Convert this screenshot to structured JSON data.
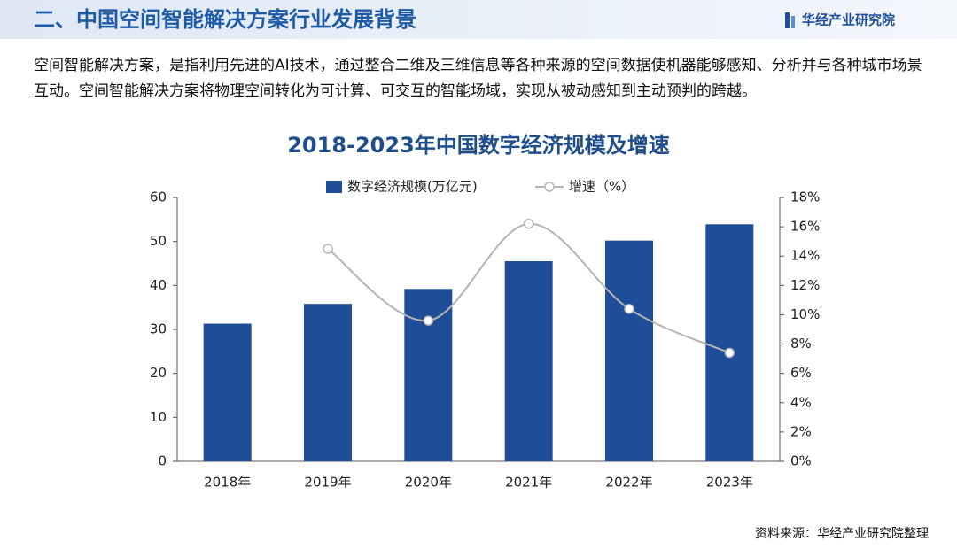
{
  "header": {
    "title": "二、中国空间智能解决方案行业发展背景",
    "logo": "华经产业研究院"
  },
  "paragraph": "空间智能解决方案，是指利用先进的AI技术，通过整合二维及三维信息等各种来源的空间数据使机器能够感知、分析并与各种城市场景互动。空间智能解决方案将物理空间转化为可计算、可交互的智能场域，实现从被动感知到主动预判的跨越。",
  "chart_data": {
    "type": "bar_line",
    "title": "2018-2023年中国数字经济规模及增速",
    "categories": [
      "2018年",
      "2019年",
      "2020年",
      "2021年",
      "2022年",
      "2023年"
    ],
    "series": [
      {
        "name": "数字经济规模(万亿元)",
        "color": "#1f4e99",
        "values": [
          31.3,
          35.8,
          39.2,
          45.5,
          50.2,
          53.9
        ]
      },
      {
        "name": "增速（%）",
        "color": "#b4b4b4",
        "axis": "y2",
        "values": [
          null,
          14.5,
          9.6,
          16.2,
          10.4,
          7.4
        ]
      }
    ],
    "ylim": [
      0,
      60
    ],
    "yticks": [
      0,
      10,
      20,
      30,
      40,
      50,
      60
    ],
    "y2lim": [
      0,
      18
    ],
    "y2ticks": [
      {
        "value": 0,
        "label": "0%"
      },
      {
        "value": 2,
        "label": "2%"
      },
      {
        "value": 4,
        "label": "4%"
      },
      {
        "value": 6,
        "label": "6%"
      },
      {
        "value": 8,
        "label": "8%"
      },
      {
        "value": 10,
        "label": "10%"
      },
      {
        "value": 12,
        "label": "12%"
      },
      {
        "value": 14,
        "label": "14%"
      },
      {
        "value": 16,
        "label": "16%"
      },
      {
        "value": 18,
        "label": "18%"
      }
    ],
    "source": "资料来源：华经产业研究院整理"
  }
}
